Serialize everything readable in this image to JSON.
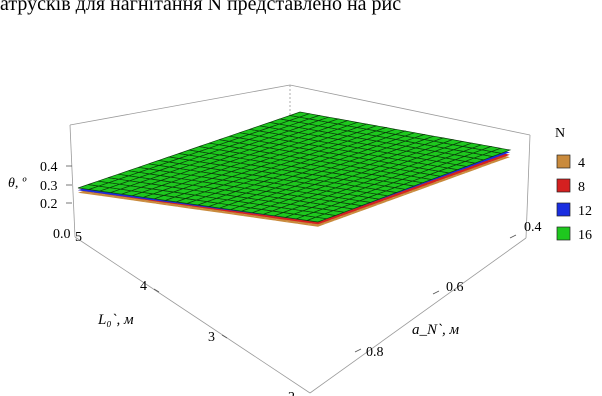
{
  "page": {
    "cropped_heading": "атрусків для нагнітання N представлено на рис"
  },
  "chart_data": {
    "type": "surface3d",
    "title": "",
    "zlabel": "θ, º",
    "xlabel": "L₀`, м",
    "ylabel": "a_N`, м",
    "x_ticks": [
      "5",
      "4",
      "3",
      "2"
    ],
    "y_ticks": [
      "0.4",
      "0.6",
      "0.8"
    ],
    "z_ticks": [
      "0.4",
      "0.3",
      "0.2",
      "0.0"
    ],
    "legend_title": "N",
    "legend_position": "right",
    "grid": "mesh",
    "series": [
      {
        "name": "4",
        "color": "#c98a3c",
        "z_corners": {
          "L5_a035": 0.3,
          "L2_a035": 0.5,
          "L5_a09": 0.2,
          "L2_a09": 0.35
        },
        "z_min_center": 0.15
      },
      {
        "name": "8",
        "color": "#d42020",
        "z_corners": {
          "L5_a035": 0.31,
          "L2_a035": 0.51,
          "L5_a09": 0.21,
          "L2_a09": 0.36
        },
        "z_min_center": 0.16
      },
      {
        "name": "12",
        "color": "#1a2ee0",
        "z_corners": {
          "L5_a035": 0.31,
          "L2_a035": 0.52,
          "L5_a09": 0.22,
          "L2_a09": 0.37
        },
        "z_min_center": 0.17
      },
      {
        "name": "16",
        "color": "#1ec81e",
        "z_corners": {
          "L5_a035": 0.32,
          "L2_a035": 0.52,
          "L5_a09": 0.22,
          "L2_a09": 0.38
        },
        "z_min_center": 0.18
      }
    ]
  }
}
